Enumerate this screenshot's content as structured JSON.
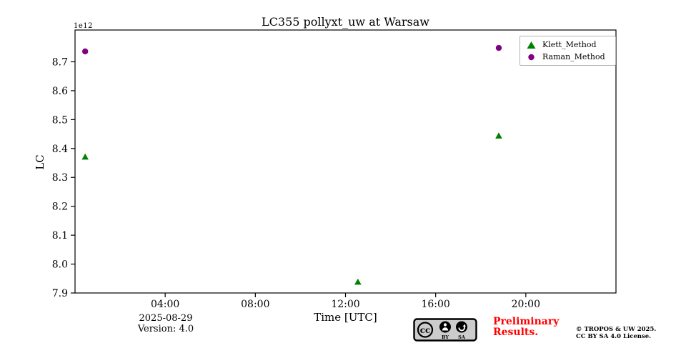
{
  "chart_data": {
    "type": "scatter",
    "title": "LC355 pollyxt_uw at Warsaw",
    "xlabel": "Time [UTC]",
    "ylabel": "LC",
    "y_offset_label": "1e12",
    "y_unit_note": "y values are in units of 1e12",
    "xlim_hours": [
      0,
      24
    ],
    "ylim": [
      7.9,
      8.81
    ],
    "grid": false,
    "legend_position": "upper right",
    "x_ticks": [
      {
        "hour": 4,
        "label": "04:00"
      },
      {
        "hour": 8,
        "label": "08:00"
      },
      {
        "hour": 12,
        "label": "12:00"
      },
      {
        "hour": 16,
        "label": "16:00"
      },
      {
        "hour": 20,
        "label": "20:00"
      }
    ],
    "y_ticks": [
      7.9,
      8.0,
      8.1,
      8.2,
      8.3,
      8.4,
      8.5,
      8.6,
      8.7
    ],
    "series": [
      {
        "name": "Klett_Method",
        "marker": "triangle",
        "color": "#008000",
        "points": [
          {
            "hour": 0.45,
            "value": 8.37
          },
          {
            "hour": 12.55,
            "value": 7.937
          },
          {
            "hour": 18.8,
            "value": 8.443
          }
        ]
      },
      {
        "name": "Raman_Method",
        "marker": "circle",
        "color": "#800080",
        "points": [
          {
            "hour": 0.45,
            "value": 8.736
          },
          {
            "hour": 18.8,
            "value": 8.748
          }
        ]
      }
    ]
  },
  "footer": {
    "date": "2025-08-29",
    "version": "Version: 4.0",
    "preliminary_line1": "Preliminary",
    "preliminary_line2": "Results.",
    "preliminary_color": "#ff0000",
    "copyright_line1": "© TROPOS & UW 2025.",
    "copyright_line2": "CC BY SA 4.0 License.",
    "badge": {
      "cc": "cc",
      "by": "BY",
      "sa": "SA"
    }
  }
}
